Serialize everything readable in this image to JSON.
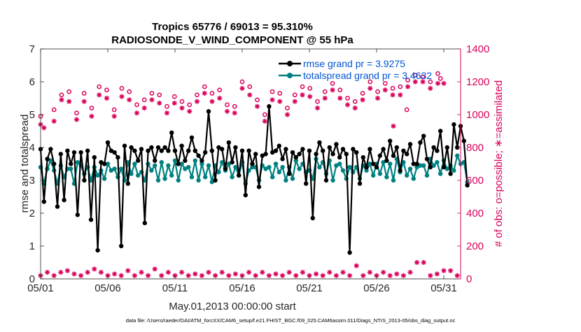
{
  "chart_data": {
    "type": "line",
    "title_line1": "Tropics 65776 / 69013 = 95.310%",
    "title_line2": "RADIOSONDE_V_WIND_COMPONENT @ 55 hPa",
    "xlabel": "May.01,2013 00:00:00 start",
    "ylabel_left": "rmse and totalspread",
    "ylabel_right": "# of obs: o=possible; ∗=assimilated",
    "footer": "data file: /Users/raeder/DAI/ATM_forcXX/CAM6_setup/f.e21.FHIST_BGC.f09_025.CAM6assim.011/Diags_NTrS_2013-05/obs_diag_output.nc",
    "xlim": [
      0,
      31.25
    ],
    "ylim_left": [
      0,
      7
    ],
    "ylim_right": [
      0,
      1400
    ],
    "x_ticks": [
      0,
      5,
      10,
      15,
      20,
      25,
      30
    ],
    "x_tick_labels": [
      "05/01",
      "05/06",
      "05/11",
      "05/16",
      "05/21",
      "05/26",
      "05/31"
    ],
    "y_left_ticks": [
      "0",
      "1",
      "2",
      "3",
      "4",
      "5",
      "6",
      "7"
    ],
    "y_right_ticks": [
      "0",
      "200",
      "400",
      "600",
      "800",
      "1000",
      "1200",
      "1400"
    ],
    "x_step_days": 0.25,
    "legend": {
      "rmse_label": "rmse grand pr = 3.9275",
      "spread_label": "totalspread grand pr = 3.4632"
    },
    "colors": {
      "rmse": "#000000",
      "spread": "#008080",
      "obs": "#d9005b"
    },
    "series": [
      {
        "name": "rmse",
        "axis": "left",
        "values": [
          3.95,
          2.35,
          3.65,
          3.95,
          3.5,
          2.2,
          3.8,
          2.4,
          3.9,
          3.5,
          3.85,
          1.95,
          3.85,
          3.0,
          3.9,
          1.8,
          3.7,
          0.87,
          3.55,
          3.5,
          4.15,
          3.9,
          3.85,
          3.7,
          1.0,
          4.05,
          2.9,
          4.0,
          3.9,
          3.6,
          3.95,
          1.7,
          3.9,
          4.0,
          3.6,
          4.0,
          3.9,
          4.0,
          3.9,
          4.45,
          3.9,
          3.5,
          4.05,
          3.6,
          3.9,
          4.3,
          3.9,
          3.75,
          3.6,
          3.85,
          5.1,
          3.9,
          3.0,
          4.0,
          3.95,
          3.35,
          4.15,
          3.55,
          4.0,
          3.15,
          3.9,
          2.55,
          3.9,
          3.5,
          3.8,
          2.8,
          3.75,
          3.8,
          5.25,
          3.85,
          3.9,
          4.05,
          3.65,
          3.95,
          3.2,
          3.85,
          3.7,
          3.8,
          3.95,
          2.9,
          3.9,
          1.85,
          3.8,
          4.15,
          3.9,
          3.0,
          4.0,
          3.8,
          4.1,
          3.7,
          3.95,
          3.8,
          0.8,
          3.95,
          3.85,
          2.9,
          3.7,
          3.4,
          3.95,
          3.5,
          3.4,
          3.75,
          3.95,
          3.6,
          4.2,
          3.75,
          4.0,
          3.3,
          3.9,
          3.8,
          4.1,
          3.5,
          3.5,
          4.15,
          4.35,
          3.65,
          3.4,
          4.0,
          3.9,
          4.5,
          3.4,
          4.0,
          3.2,
          4.7,
          4.0,
          4.65,
          4.2,
          2.85
        ],
        "marker": "dot-line"
      },
      {
        "name": "totalspread",
        "axis": "left",
        "values": [
          3.4,
          2.9,
          3.35,
          3.6,
          3.3,
          2.9,
          3.45,
          3.1,
          3.35,
          3.35,
          2.9,
          3.55,
          3.45,
          3.2,
          3.4,
          3.0,
          3.4,
          3.15,
          3.3,
          3.05,
          3.5,
          3.3,
          3.35,
          3.1,
          3.35,
          3.0,
          3.55,
          3.2,
          3.5,
          3.15,
          3.25,
          3.0,
          3.5,
          3.3,
          3.45,
          3.0,
          3.55,
          3.05,
          3.45,
          3.15,
          3.6,
          3.0,
          3.5,
          3.35,
          3.4,
          3.1,
          3.6,
          3.0,
          3.5,
          3.1,
          3.45,
          2.95,
          3.45,
          3.25,
          3.55,
          3.3,
          3.5,
          3.1,
          3.4,
          3.15,
          3.55,
          2.9,
          3.3,
          3.4,
          3.4,
          3.0,
          3.45,
          3.35,
          3.4,
          3.1,
          3.5,
          3.25,
          3.4,
          3.0,
          3.4,
          3.05,
          3.6,
          3.35,
          3.5,
          3.25,
          3.3,
          3.05,
          3.65,
          3.4,
          3.55,
          3.2,
          3.6,
          3.0,
          3.45,
          3.5,
          3.3,
          3.05,
          3.4,
          3.25,
          3.4,
          3.05,
          3.45,
          3.3,
          3.5,
          3.15,
          3.5,
          3.2,
          3.55,
          3.1,
          3.5,
          3.0,
          3.65,
          3.25,
          3.55,
          3.15,
          3.35,
          3.05,
          3.4,
          3.45,
          3.45,
          3.15,
          3.65,
          3.45,
          3.55,
          3.2,
          3.6,
          3.35,
          3.45,
          3.3,
          3.75,
          3.5,
          3.55,
          2.95
        ],
        "marker": "dot-line"
      },
      {
        "name": "obs possible",
        "axis": "right",
        "marker": "circle",
        "pattern": [
          [
            1030,
            1120,
            1140,
            1010
          ],
          [
            1130,
            1040,
            1170,
            1150
          ],
          [
            1030,
            1160,
            1140,
            1060
          ],
          [
            1090,
            1130,
            1120,
            1050
          ],
          [
            1110,
            1080,
            1060,
            1120
          ],
          [
            1170,
            1130,
            1150,
            1060
          ],
          [
            1050,
            1200,
            1170,
            1090
          ],
          [
            1000,
            1140,
            1130,
            1040
          ],
          [
            1120,
            1170,
            1160,
            1080
          ],
          [
            1140,
            1190,
            1150,
            1100
          ],
          [
            1080,
            1130,
            1200,
            1140
          ],
          [
            1190,
            1160,
            1170,
            1210
          ],
          [
            1240,
            1230,
            1200,
            1250
          ]
        ],
        "extra": [
          [
            0.0,
            990
          ],
          [
            27.25,
            1030
          ],
          [
            29.75,
            1220
          ]
        ]
      },
      {
        "name": "obs assimilated",
        "axis": "right",
        "marker": "asterisk",
        "pattern": [
          [
            960,
            1090,
            1080,
            970
          ],
          [
            1080,
            990,
            1120,
            1100
          ],
          [
            990,
            1110,
            1090,
            1010
          ],
          [
            1040,
            1090,
            1070,
            1010
          ],
          [
            1070,
            1040,
            1020,
            1080
          ],
          [
            1130,
            1080,
            1100,
            1020
          ],
          [
            1010,
            1160,
            1120,
            1050
          ],
          [
            960,
            1090,
            1080,
            1000
          ],
          [
            1080,
            1120,
            1110,
            1040
          ],
          [
            1100,
            1150,
            1100,
            1060
          ],
          [
            1040,
            1090,
            1160,
            1100
          ],
          [
            1150,
            1120,
            1120,
            1170
          ],
          [
            1200,
            1200,
            1160,
            1190
          ]
        ],
        "extra": [
          [
            0.0,
            940
          ],
          [
            0.25,
            920
          ],
          [
            26.25,
            930
          ],
          [
            30.0,
            1190
          ]
        ]
      },
      {
        "name": "obs low (possible + assimilated)",
        "axis": "right",
        "marker": "asterisk",
        "base": [
          20,
          40,
          20,
          40,
          20,
          30
        ],
        "spikes": [
          [
            4.0,
            60
          ],
          [
            6.5,
            50
          ],
          [
            8.5,
            60
          ],
          [
            23.5,
            80
          ],
          [
            28.25,
            100
          ],
          [
            30.25,
            50
          ],
          [
            2.0,
            50
          ]
        ]
      }
    ]
  }
}
